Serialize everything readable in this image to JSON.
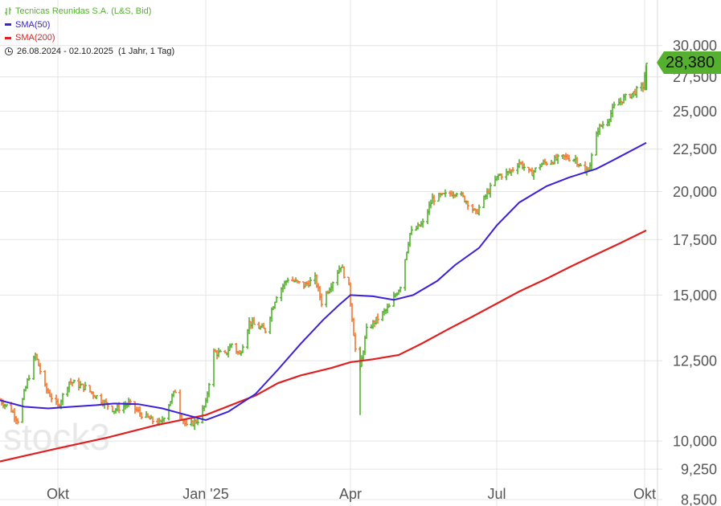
{
  "legend": {
    "instrument": "Tecnicas Reunidas S.A. (L&S, Bid)",
    "sma50": "SMA(50)",
    "sma200": "SMA(200)",
    "range": "26.08.2024 - 02.10.2025  (1 Jahr, 1 Tag)"
  },
  "watermark": "stock3",
  "last_price_label": "28,380",
  "colors": {
    "up": "#55b030",
    "down": "#f07830",
    "sma50": "#3a20d8",
    "sma200": "#e02020",
    "grid": "#e4e4e4",
    "price_tag": "#55b030",
    "axis_text": "#555555"
  },
  "chart_data": {
    "type": "line",
    "title": "Tecnicas Reunidas S.A. (L&S, Bid)",
    "y_scale": "log",
    "ylim": [
      8.5,
      31.0
    ],
    "y_ticks": [
      {
        "value": 30.0,
        "label": "30,000"
      },
      {
        "value": 27.5,
        "label": "27,500"
      },
      {
        "value": 25.0,
        "label": "25,000"
      },
      {
        "value": 22.5,
        "label": "22,500"
      },
      {
        "value": 20.0,
        "label": "20,000"
      },
      {
        "value": 17.5,
        "label": "17,500"
      },
      {
        "value": 15.0,
        "label": "15,000"
      },
      {
        "value": 12.5,
        "label": "12,500"
      },
      {
        "value": 10.0,
        "label": "10,000"
      },
      {
        "value": 9.25,
        "label": "9,250"
      },
      {
        "value": 8.5,
        "label": "8,500"
      }
    ],
    "x_ticks": [
      {
        "date": "2024-10-01",
        "label": "Okt"
      },
      {
        "date": "2025-01-01",
        "label": "Jan '25"
      },
      {
        "date": "2025-04-01",
        "label": "Apr"
      },
      {
        "date": "2025-07-01",
        "label": "Jul"
      },
      {
        "date": "2025-10-01",
        "label": "Okt"
      }
    ],
    "xlim": [
      "2024-08-26",
      "2025-10-09"
    ],
    "price_points": [
      [
        "2024-08-26",
        11.2
      ],
      [
        "2024-09-02",
        10.9
      ],
      [
        "2024-09-06",
        10.6
      ],
      [
        "2024-09-12",
        11.8
      ],
      [
        "2024-09-17",
        12.7
      ],
      [
        "2024-09-23",
        11.6
      ],
      [
        "2024-10-01",
        11.0
      ],
      [
        "2024-10-08",
        11.8
      ],
      [
        "2024-10-18",
        11.6
      ],
      [
        "2024-10-28",
        11.2
      ],
      [
        "2024-11-05",
        10.9
      ],
      [
        "2024-11-14",
        11.1
      ],
      [
        "2024-11-21",
        10.8
      ],
      [
        "2024-11-28",
        10.6
      ],
      [
        "2024-12-04",
        10.5
      ],
      [
        "2024-12-10",
        11.2
      ],
      [
        "2024-12-13",
        11.5
      ],
      [
        "2024-12-16",
        10.8
      ],
      [
        "2024-12-20",
        10.4
      ],
      [
        "2024-12-27",
        10.6
      ],
      [
        "2025-01-01",
        11.1
      ],
      [
        "2025-01-06",
        12.8
      ],
      [
        "2025-01-13",
        12.7
      ],
      [
        "2025-01-17",
        13.1
      ],
      [
        "2025-01-22",
        12.7
      ],
      [
        "2025-01-28",
        13.9
      ],
      [
        "2025-02-07",
        13.6
      ],
      [
        "2025-02-14",
        15.0
      ],
      [
        "2025-02-21",
        15.7
      ],
      [
        "2025-03-03",
        15.4
      ],
      [
        "2025-03-10",
        15.7
      ],
      [
        "2025-03-14",
        14.7
      ],
      [
        "2025-03-21",
        15.6
      ],
      [
        "2025-03-26",
        16.3
      ],
      [
        "2025-03-31",
        15.3
      ],
      [
        "2025-04-04",
        12.9
      ],
      [
        "2025-04-07",
        12.2
      ],
      [
        "2025-04-11",
        13.6
      ],
      [
        "2025-04-17",
        14.0
      ],
      [
        "2025-04-25",
        14.5
      ],
      [
        "2025-05-02",
        15.4
      ],
      [
        "2025-05-08",
        17.8
      ],
      [
        "2025-05-16",
        18.3
      ],
      [
        "2025-05-22",
        19.6
      ],
      [
        "2025-05-30",
        19.8
      ],
      [
        "2025-06-06",
        20.0
      ],
      [
        "2025-06-13",
        19.4
      ],
      [
        "2025-06-18",
        18.8
      ],
      [
        "2025-06-25",
        19.9
      ],
      [
        "2025-07-02",
        20.9
      ],
      [
        "2025-07-09",
        21.1
      ],
      [
        "2025-07-15",
        21.7
      ],
      [
        "2025-07-22",
        21.0
      ],
      [
        "2025-07-29",
        21.6
      ],
      [
        "2025-08-05",
        21.8
      ],
      [
        "2025-08-12",
        22.0
      ],
      [
        "2025-08-19",
        21.9
      ],
      [
        "2025-08-25",
        21.0
      ],
      [
        "2025-08-28",
        21.6
      ],
      [
        "2025-09-02",
        23.8
      ],
      [
        "2025-09-08",
        24.4
      ],
      [
        "2025-09-12",
        25.3
      ],
      [
        "2025-09-18",
        25.9
      ],
      [
        "2025-09-24",
        26.3
      ],
      [
        "2025-09-30",
        26.8
      ],
      [
        "2025-10-02",
        28.38
      ]
    ],
    "series": [
      {
        "name": "SMA(50)",
        "points": [
          [
            "2024-08-26",
            11.2
          ],
          [
            "2024-09-10",
            11.0
          ],
          [
            "2024-09-25",
            10.95
          ],
          [
            "2024-10-10",
            11.0
          ],
          [
            "2024-10-25",
            11.05
          ],
          [
            "2024-11-05",
            11.1
          ],
          [
            "2024-11-20",
            11.08
          ],
          [
            "2024-12-05",
            10.95
          ],
          [
            "2024-12-20",
            10.75
          ],
          [
            "2025-01-01",
            10.6
          ],
          [
            "2025-01-15",
            10.85
          ],
          [
            "2025-02-01",
            11.4
          ],
          [
            "2025-02-15",
            12.2
          ],
          [
            "2025-03-01",
            13.1
          ],
          [
            "2025-03-15",
            14.0
          ],
          [
            "2025-03-25",
            14.6
          ],
          [
            "2025-04-01",
            15.0
          ],
          [
            "2025-04-15",
            14.95
          ],
          [
            "2025-04-28",
            14.8
          ],
          [
            "2025-05-10",
            15.0
          ],
          [
            "2025-05-25",
            15.6
          ],
          [
            "2025-06-05",
            16.3
          ],
          [
            "2025-06-20",
            17.1
          ],
          [
            "2025-07-01",
            18.2
          ],
          [
            "2025-07-15",
            19.4
          ],
          [
            "2025-08-01",
            20.3
          ],
          [
            "2025-08-15",
            20.8
          ],
          [
            "2025-09-01",
            21.3
          ],
          [
            "2025-09-15",
            22.0
          ],
          [
            "2025-10-02",
            22.9
          ]
        ]
      },
      {
        "name": "SMA(200)",
        "points": [
          [
            "2024-08-26",
            9.45
          ],
          [
            "2024-10-01",
            9.8
          ],
          [
            "2024-11-01",
            10.1
          ],
          [
            "2024-12-01",
            10.45
          ],
          [
            "2025-01-01",
            10.75
          ],
          [
            "2025-02-01",
            11.35
          ],
          [
            "2025-02-15",
            11.75
          ],
          [
            "2025-03-01",
            12.0
          ],
          [
            "2025-03-20",
            12.25
          ],
          [
            "2025-04-01",
            12.45
          ],
          [
            "2025-04-15",
            12.55
          ],
          [
            "2025-05-01",
            12.7
          ],
          [
            "2025-05-15",
            13.1
          ],
          [
            "2025-06-01",
            13.65
          ],
          [
            "2025-06-15",
            14.1
          ],
          [
            "2025-07-01",
            14.65
          ],
          [
            "2025-07-15",
            15.15
          ],
          [
            "2025-08-01",
            15.7
          ],
          [
            "2025-08-15",
            16.2
          ],
          [
            "2025-09-01",
            16.8
          ],
          [
            "2025-09-15",
            17.3
          ],
          [
            "2025-10-02",
            17.95
          ]
        ]
      }
    ],
    "last_value": 28.38
  }
}
